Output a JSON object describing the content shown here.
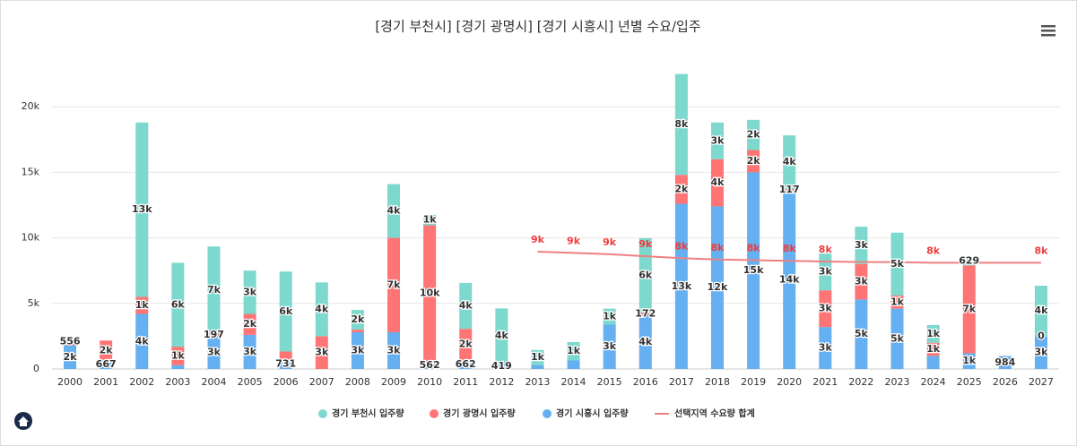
{
  "chart_data": {
    "type": "bar",
    "title": "[경기 부천시] [경기 광명시] [경기 시흥시] 년별 수요/입주",
    "categories": [
      "2000",
      "2001",
      "2002",
      "2003",
      "2004",
      "2005",
      "2006",
      "2007",
      "2008",
      "2009",
      "2010",
      "2011",
      "2012",
      "2013",
      "2014",
      "2015",
      "2016",
      "2017",
      "2018",
      "2019",
      "2020",
      "2021",
      "2022",
      "2023",
      "2024",
      "2025",
      "2026",
      "2027"
    ],
    "ylim": [
      0,
      25000
    ],
    "yticks": [
      {
        "value": 0,
        "label": "0"
      },
      {
        "value": 5000,
        "label": "5k"
      },
      {
        "value": 10000,
        "label": "10k"
      },
      {
        "value": 15000,
        "label": "15k"
      },
      {
        "value": 20000,
        "label": "20k"
      }
    ],
    "grid": true,
    "legend": "bottom",
    "series": [
      {
        "name": "경기 부천시 입주량",
        "color": "#7dd8cd",
        "values": [
          0,
          0,
          13300,
          6400,
          6650,
          3300,
          6100,
          4100,
          1500,
          4100,
          800,
          3500,
          4200,
          1150,
          1400,
          1200,
          5700,
          7700,
          2800,
          2300,
          4100,
          2800,
          2850,
          4800,
          1350,
          629,
          0,
          3850
        ],
        "value_labels": [
          null,
          null,
          "13k",
          "6k",
          "7k",
          "3k",
          "6k",
          "4k",
          "2k",
          "4k",
          "1k",
          "4k",
          "4k",
          "1k",
          "1k",
          "1k",
          "6k",
          "8k",
          "3k",
          "2k",
          "4k",
          "3k",
          "3k",
          "5k",
          "1k",
          "629",
          null,
          "4k"
        ]
      },
      {
        "name": "경기 광명시 입주량",
        "color": "#ff7474",
        "values": [
          556,
          1500,
          1300,
          1400,
          197,
          1600,
          600,
          2500,
          200,
          7200,
          10400,
          2400,
          0,
          0,
          0,
          0,
          172,
          2200,
          3600,
          1700,
          117,
          2800,
          2700,
          1000,
          1000,
          6700,
          0,
          0
        ],
        "value_labels": [
          "556",
          "2k",
          "1k",
          "1k",
          "197",
          "2k",
          null,
          "3k",
          null,
          "7k",
          "10k",
          "2k",
          null,
          null,
          null,
          null,
          "172",
          "2k",
          "4k",
          "2k",
          "117",
          "3k",
          "3k",
          "1k",
          "1k",
          "7k",
          null,
          "0"
        ]
      },
      {
        "name": "경기 시흥시 입주량",
        "color": "#64b0f0",
        "values": [
          1800,
          667,
          4200,
          300,
          2500,
          2600,
          731,
          0,
          2800,
          2800,
          562,
          662,
          419,
          300,
          650,
          3400,
          4100,
          12600,
          12400,
          15000,
          13600,
          3200,
          5300,
          4600,
          1000,
          1200,
          984,
          2500
        ],
        "value_labels": [
          "2k",
          "667",
          "4k",
          null,
          "3k",
          "3k",
          "731",
          null,
          "3k",
          "3k",
          "562",
          "662",
          "419",
          null,
          null,
          "3k",
          "4k",
          "13k",
          "12k",
          "15k",
          "14k",
          "3k",
          "5k",
          "5k",
          null,
          "1k",
          "984",
          "3k"
        ]
      },
      {
        "name": "선택지역 수요량 합계",
        "color": "#f08080",
        "line": true,
        "values": [
          null,
          null,
          null,
          null,
          null,
          null,
          null,
          null,
          null,
          null,
          null,
          null,
          null,
          8950,
          8850,
          8750,
          8600,
          8450,
          8350,
          8300,
          8250,
          8200,
          8150,
          8150,
          8100,
          8100,
          8100,
          8100
        ],
        "value_labels": [
          null,
          null,
          null,
          null,
          null,
          null,
          null,
          null,
          null,
          null,
          null,
          null,
          null,
          "9k",
          "9k",
          "9k",
          "9k",
          "8k",
          "8k",
          "8k",
          "8k",
          "8k",
          null,
          null,
          "8k",
          null,
          null,
          "8k"
        ]
      }
    ]
  }
}
